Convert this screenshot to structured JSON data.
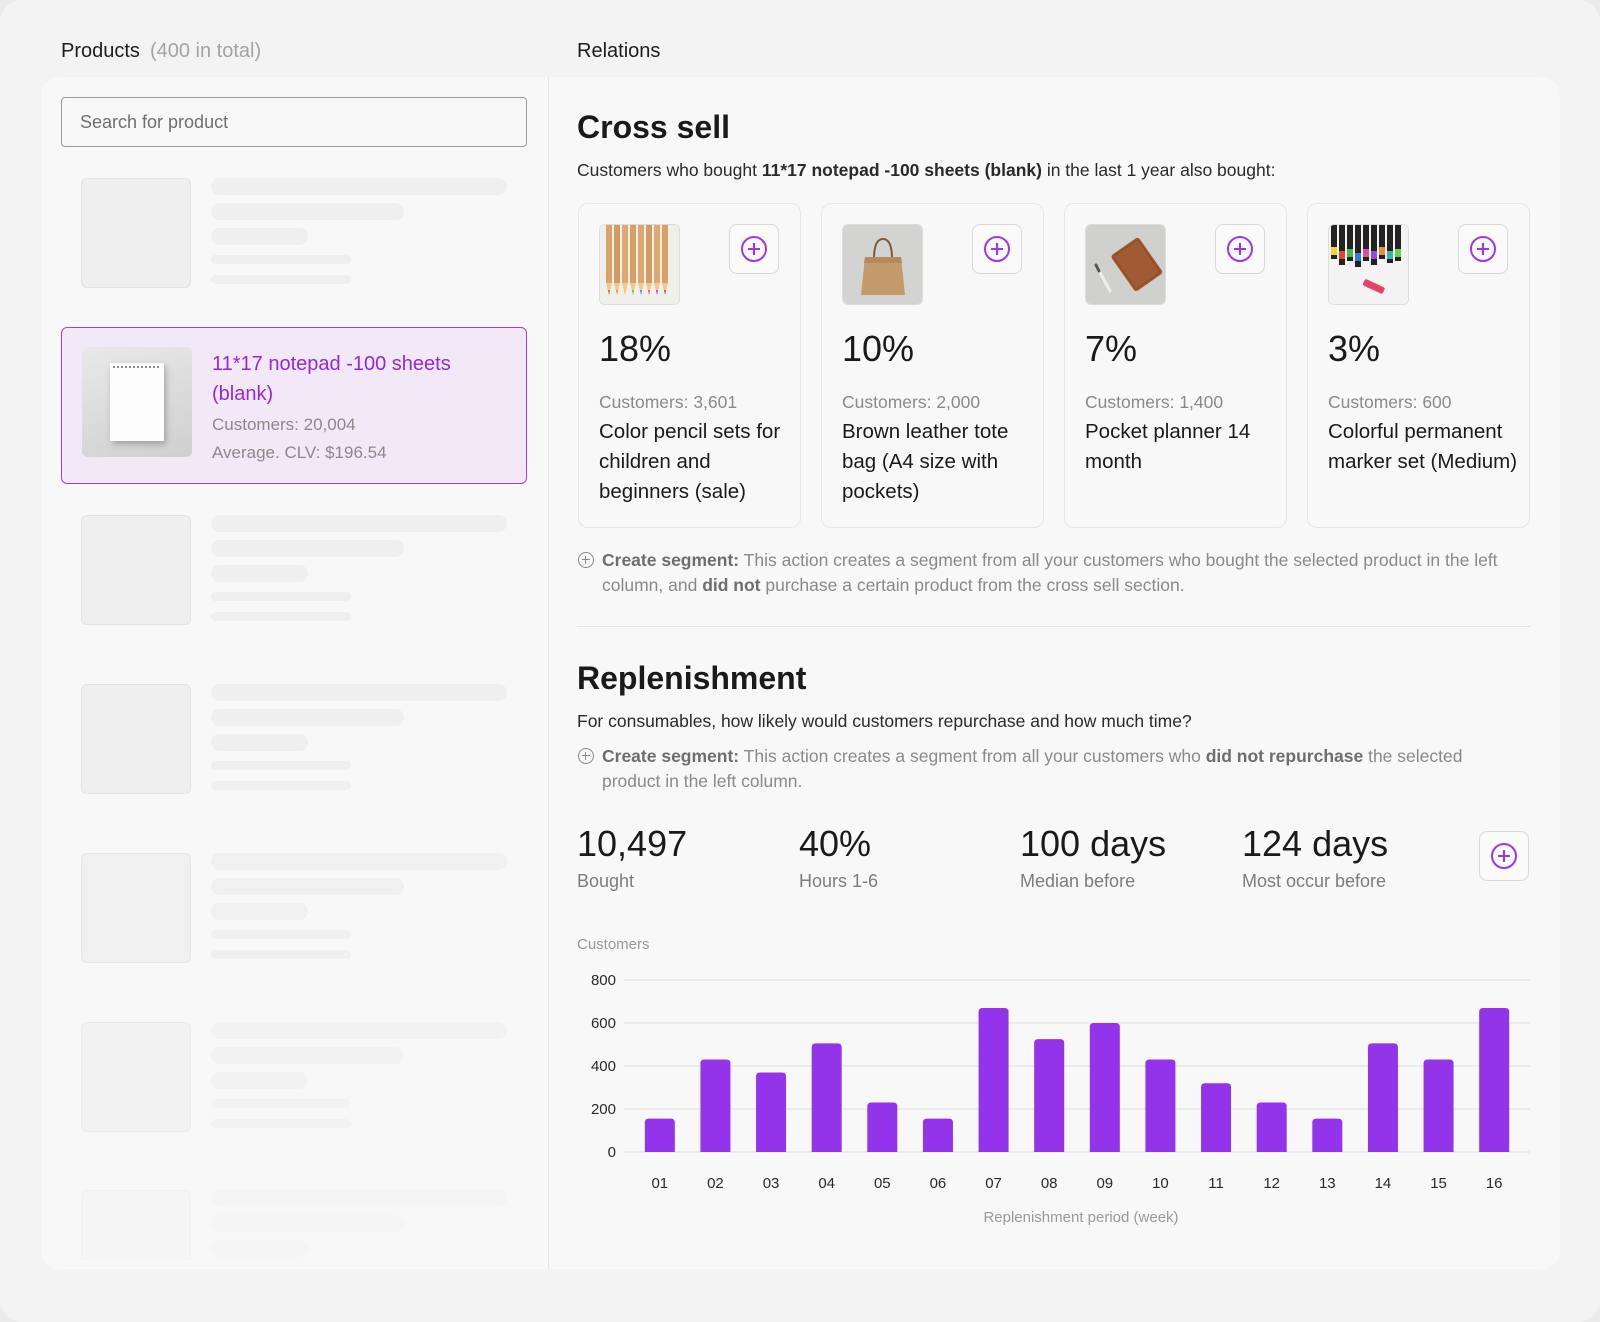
{
  "left": {
    "header_title": "Products",
    "header_count": "(400 in total)",
    "search_placeholder": "Search for product",
    "selected_product": {
      "name": "11*17 notepad -100 sheets (blank)",
      "customers": "Customers: 20,004",
      "clv": "Average. CLV: $196.54"
    }
  },
  "right": {
    "header_title": "Relations",
    "cross_sell": {
      "title": "Cross sell",
      "desc_prefix": "Customers who bought ",
      "desc_product": "11*17 notepad -100 sheets (blank)",
      "desc_suffix": " in the last 1 year also bought:",
      "items": [
        {
          "pct": "18%",
          "customers": "Customers: 3,601",
          "name": "Color pencil sets for children and beginners  (sale)",
          "icon": "color-pencils-image"
        },
        {
          "pct": "10%",
          "customers": "Customers: 2,000",
          "name": "Brown leather tote bag (A4 size with pockets)",
          "icon": "tote-bag-image"
        },
        {
          "pct": "7%",
          "customers": "Customers: 1,400",
          "name": "Pocket planner 14 month",
          "icon": "pocket-planner-image"
        },
        {
          "pct": "3%",
          "customers": "Customers: 600",
          "name": "Colorful permanent marker set (Medium)",
          "icon": "markers-image"
        }
      ],
      "note_label": "Create segment:",
      "note_part1": " This action creates a segment from all your customers who bought the selected product in the left column, and ",
      "note_bold": "did not",
      "note_part2": " purchase a certain product from the cross sell section."
    },
    "replenishment": {
      "title": "Replenishment",
      "desc": "For consumables, how likely would customers repurchase and how much time?",
      "note_label": "Create segment:",
      "note_part1": " This action creates a segment from all your customers who ",
      "note_bold": "did not repurchase",
      "note_part2": " the selected product in the left column.",
      "stats": [
        {
          "value": "10,497",
          "label": "Bought"
        },
        {
          "value": "40%",
          "label": "Hours 1-6"
        },
        {
          "value": "100 days",
          "label": "Median before"
        },
        {
          "value": "124 days",
          "label": "Most occur before"
        }
      ]
    }
  },
  "chart_data": {
    "type": "bar",
    "ylabel": "Customers",
    "xlabel": "Replenishment period (week)",
    "ylim": [
      0,
      800
    ],
    "yticks": [
      0,
      200,
      400,
      600,
      800
    ],
    "categories": [
      "01",
      "02",
      "03",
      "04",
      "05",
      "06",
      "07",
      "08",
      "09",
      "10",
      "11",
      "12",
      "13",
      "14",
      "15",
      "16"
    ],
    "values": [
      155,
      430,
      370,
      505,
      230,
      155,
      670,
      525,
      600,
      430,
      320,
      230,
      155,
      505,
      430,
      670
    ],
    "bar_color": "#9333ea",
    "grid": true
  }
}
